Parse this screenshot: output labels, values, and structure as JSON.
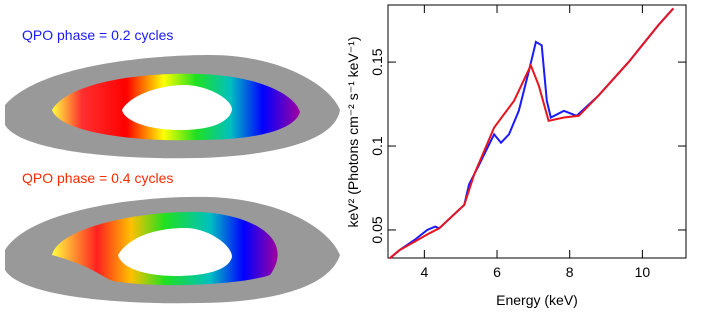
{
  "panels": [
    {
      "label": "QPO phase = 0.2 cycles",
      "color": "#1a1aff"
    },
    {
      "label": "QPO phase = 0.4 cycles",
      "color": "#ff2a00"
    }
  ],
  "chart_data": {
    "type": "line",
    "xlabel": "Energy (keV)",
    "ylabel": "keV² (Photons cm⁻² s⁻¹ keV⁻¹)",
    "xlim": [
      3,
      11.2
    ],
    "xticks": [
      4,
      6,
      8,
      10
    ],
    "ylim": [
      0.0333,
      0.184
    ],
    "yticks": [
      0.05,
      0.1,
      0.15
    ],
    "series": [
      {
        "name": "QPO phase = 0.2 cycles",
        "color": "#1a1aff",
        "x": [
          3.04,
          3.32,
          3.73,
          4.08,
          4.3,
          4.41,
          5.1,
          5.23,
          5.51,
          5.92,
          6.11,
          6.33,
          6.6,
          6.88,
          7.07,
          7.23,
          7.37,
          7.48,
          7.84,
          8.19,
          8.79,
          9.62,
          10.44,
          10.85
        ],
        "values": [
          0.033,
          0.038,
          0.044,
          0.05,
          0.052,
          0.051,
          0.065,
          0.077,
          0.089,
          0.107,
          0.102,
          0.107,
          0.121,
          0.145,
          0.162,
          0.16,
          0.127,
          0.117,
          0.121,
          0.118,
          0.13,
          0.15,
          0.172,
          0.182
        ]
      },
      {
        "name": "QPO phase = 0.4 cycles",
        "color": "#e8141e",
        "x": [
          3.04,
          3.32,
          3.73,
          4.14,
          4.41,
          5.1,
          5.37,
          5.92,
          6.47,
          6.93,
          7.15,
          7.42,
          7.84,
          8.25,
          8.79,
          9.62,
          10.44,
          10.85
        ],
        "values": [
          0.033,
          0.038,
          0.043,
          0.048,
          0.051,
          0.065,
          0.083,
          0.111,
          0.127,
          0.148,
          0.136,
          0.115,
          0.117,
          0.118,
          0.13,
          0.15,
          0.172,
          0.182
        ]
      }
    ]
  }
}
